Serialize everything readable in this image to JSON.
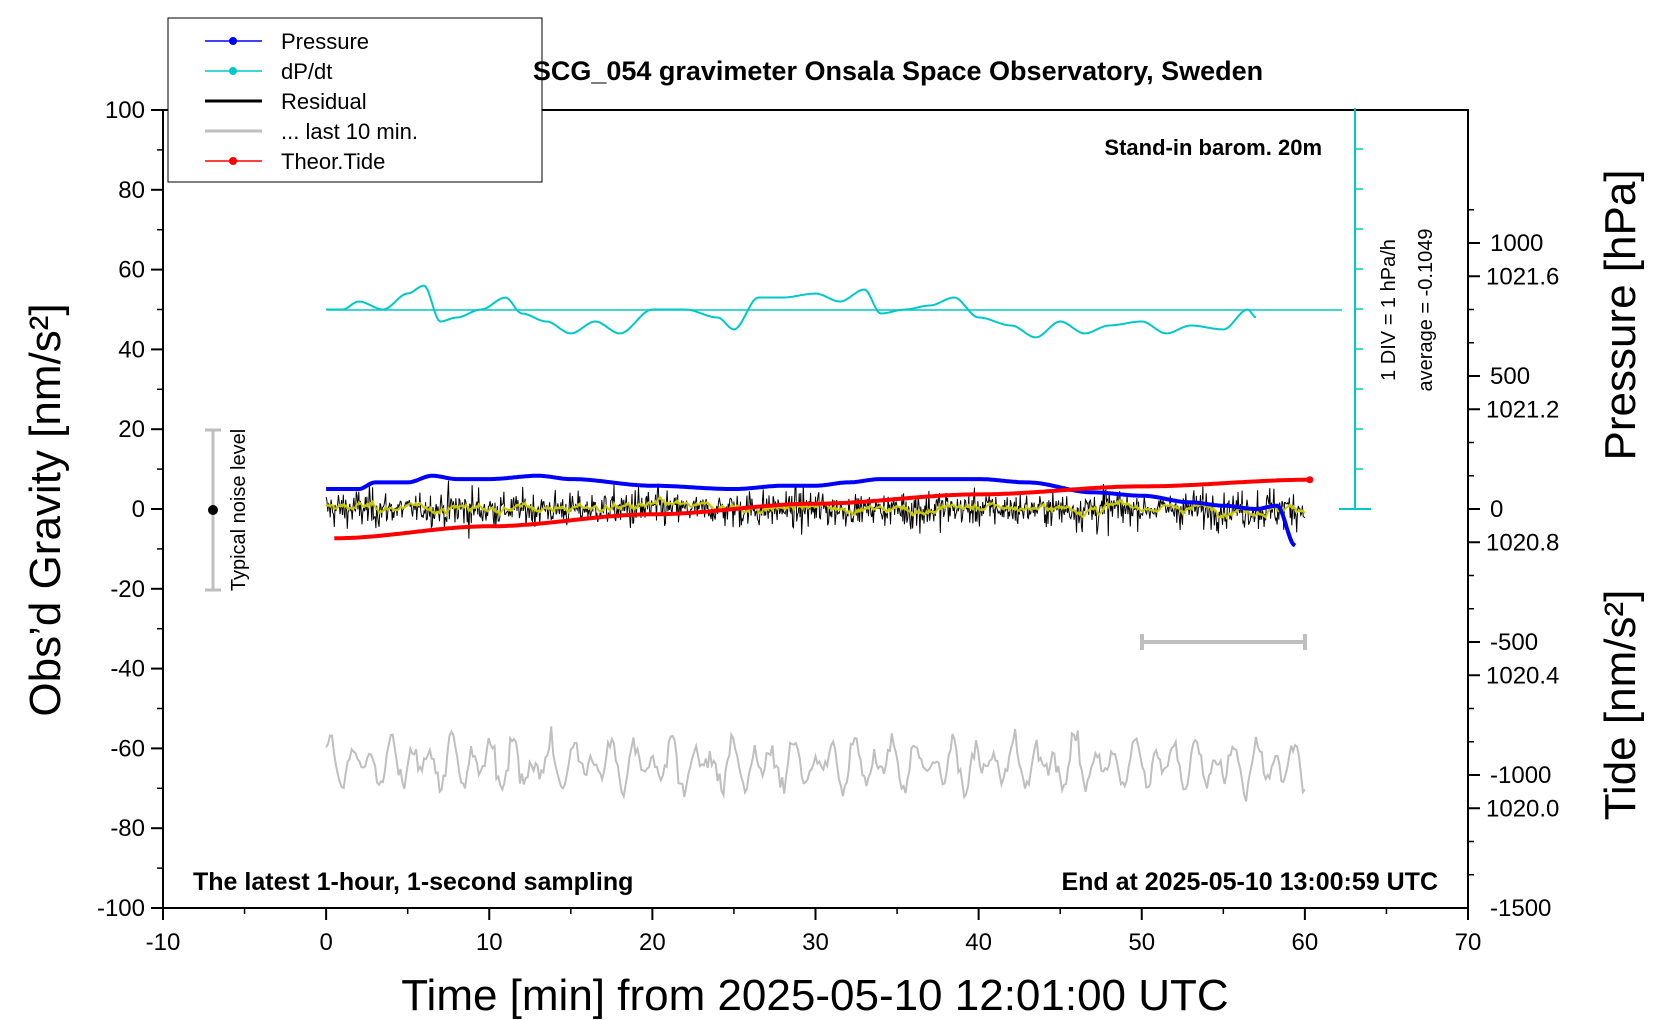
{
  "chart_data": {
    "type": "line",
    "title": "SCG_054 gravimeter Onsala Space Observatory, Sweden",
    "xlabel": "Time [min] from 2025-05-10 12:01:00 UTC",
    "ylabel": "Obs’d Gravity [nm/s²]",
    "ylabel_right_top": "Pressure [hPa]",
    "ylabel_right_bottom": "Tide [nm/s²]",
    "xlim": [
      -10,
      70
    ],
    "ylim": [
      -100,
      100
    ],
    "x_ticks": [
      "-10",
      "0",
      "10",
      "20",
      "30",
      "40",
      "50",
      "60",
      "70"
    ],
    "y_ticks": [
      "100",
      "80",
      "60",
      "40",
      "20",
      "0",
      "-20",
      "-40",
      "-60",
      "-80",
      "-100"
    ],
    "pressure_axis": {
      "ticks": [
        "1021.6",
        "1021.2",
        "1020.8",
        "1020.4",
        "1020.0"
      ],
      "range": [
        1019.7,
        1022.1
      ]
    },
    "tide_axis": {
      "ticks": [
        "1000",
        "500",
        "0",
        "-500",
        "-1000",
        "-1500"
      ],
      "range": [
        -1500,
        1500
      ]
    },
    "legend": [
      {
        "label": "Pressure",
        "color": "#0000ff",
        "marker": "dot"
      },
      {
        "label": "dP/dt",
        "color": "#00c8c8",
        "marker": "dot"
      },
      {
        "label": "Residual",
        "color": "#000000",
        "marker": "none"
      },
      {
        "label": "... last 10 min.",
        "color": "#bfbfbf",
        "marker": "none"
      },
      {
        "label": "Theor.Tide",
        "color": "#ff0000",
        "marker": "dot"
      }
    ],
    "annotations": {
      "baro": "Stand-in barom. 20m",
      "latest": "The latest 1-hour, 1-second sampling",
      "end": "End at 2025-05-10 13:00:59 UTC",
      "noise": "Typical noise level",
      "div": "1 DIV = 1 hPa/h",
      "average": "average = -0.1049"
    },
    "series": [
      {
        "name": "Pressure",
        "axis": "pressure",
        "x": [
          0,
          2,
          3,
          5,
          6.5,
          8,
          10,
          13,
          15,
          20,
          25,
          28,
          30,
          32,
          34,
          36,
          40,
          43,
          47,
          50,
          53,
          55,
          57,
          58.3,
          59.4
        ],
        "values": [
          1020.96,
          1020.96,
          1020.98,
          1020.98,
          1021.0,
          1020.99,
          1020.99,
          1021.0,
          1020.99,
          1020.97,
          1020.96,
          1020.97,
          1020.97,
          1020.98,
          1020.99,
          1020.99,
          1020.99,
          1020.98,
          1020.95,
          1020.94,
          1020.92,
          1020.91,
          1020.9,
          1020.91,
          1020.79
        ]
      },
      {
        "name": "dP/dt",
        "axis": "gravity",
        "x": [
          0,
          1,
          2,
          3.5,
          5,
          6,
          7,
          8,
          9.5,
          11,
          12,
          13.5,
          15,
          16.5,
          18,
          20,
          22,
          24,
          25,
          26.5,
          28,
          30,
          31.5,
          33,
          34,
          35.5,
          37,
          38.5,
          40,
          42,
          43.5,
          45,
          46.5,
          48,
          50,
          51.5,
          53,
          55,
          56.5,
          57
        ],
        "values": [
          50,
          50,
          52,
          50,
          54,
          56,
          47,
          48,
          50,
          53,
          49,
          47,
          44,
          47,
          44,
          50,
          50,
          48,
          45,
          53,
          53,
          54,
          52,
          55,
          49,
          50,
          51,
          53,
          48,
          46,
          43,
          47,
          44,
          46,
          47,
          44,
          46,
          45,
          50,
          48
        ]
      },
      {
        "name": "Theor.Tide",
        "axis": "tide",
        "x": [
          0.5,
          10,
          20,
          30,
          40,
          50,
          60.3
        ],
        "values": [
          -110,
          -65,
          -20,
          20,
          55,
          85,
          110
        ]
      }
    ]
  }
}
